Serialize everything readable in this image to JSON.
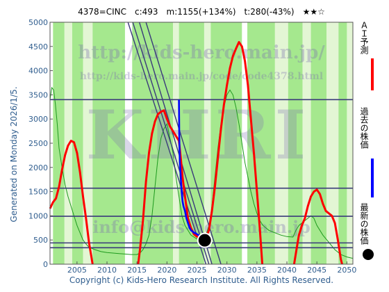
{
  "header": {
    "title": "4378=CINC　c:493　m:1155(+134%)　t:280(-43%)　★★☆"
  },
  "side_label": "Generated on Monday 2026/1/5.",
  "footer": "Copyright (c) Kids-Hero Research Institute. All Rights Reserved.",
  "watermarks": {
    "url_main": "http://kids-hero.main.jp/",
    "url_code": "http://kids-hero.main.jp/code/code4378.html",
    "brand": "KHRI",
    "email": "info@kids-hero.main.jp"
  },
  "legend": [
    {
      "label": "ＡＩ予測",
      "color": "#ff0000",
      "marker": "bar"
    },
    {
      "label": "過去の株価",
      "color": "#0000ff",
      "marker": "bar"
    },
    {
      "label": "最新の株価",
      "color": "#000000",
      "marker": "dot"
    }
  ],
  "colors": {
    "band_green": "#a5e88e",
    "band_light": "#e3f6d4",
    "band_white": "#ffffff",
    "ai": "#ff0000",
    "past": "#0000ff",
    "current": "#000000",
    "level": "#3a3a7a",
    "trend": "#3a3a7a",
    "thin_green": "#1e9a1e",
    "axis_text": "#2f5d8e"
  },
  "chart_data": {
    "type": "line",
    "xlim": [
      2000.5,
      2051.0
    ],
    "ylim": [
      0,
      5000
    ],
    "x_ticks": [
      2005,
      2010,
      2015,
      2020,
      2025,
      2030,
      2035,
      2040,
      2045,
      2050
    ],
    "y_ticks": [
      0,
      500,
      1000,
      1500,
      2000,
      2500,
      3000,
      3500,
      4000,
      4500,
      5000
    ],
    "green_bands": [
      [
        2001.0,
        2002.9
      ],
      [
        2004.2,
        2006.0
      ],
      [
        2007.6,
        2013.0
      ],
      [
        2014.2,
        2021.0
      ],
      [
        2022.0,
        2026.2
      ],
      [
        2027.3,
        2032.5
      ],
      [
        2033.4,
        2038.0
      ],
      [
        2040.2,
        2042.6
      ],
      [
        2044.0,
        2046.6
      ],
      [
        2048.6,
        2050.0
      ]
    ],
    "light_bands": [
      [
        2002.9,
        2004.2
      ],
      [
        2006.0,
        2007.6
      ],
      [
        2021.0,
        2022.0
      ],
      [
        2026.2,
        2027.3
      ],
      [
        2038.0,
        2040.2
      ],
      [
        2042.6,
        2044.0
      ],
      [
        2046.6,
        2048.6
      ],
      [
        2050.0,
        2051.0
      ]
    ],
    "levels": [
      340,
      440,
      990,
      1570,
      3400
    ],
    "trend_lines": [
      [
        [
          2013.5,
          5000
        ],
        [
          2026.5,
          0
        ]
      ],
      [
        [
          2014.3,
          5000
        ],
        [
          2027.0,
          0
        ]
      ],
      [
        [
          2015.4,
          5000
        ],
        [
          2027.5,
          0
        ]
      ],
      [
        [
          2016.5,
          5000
        ],
        [
          2029.0,
          0
        ]
      ]
    ],
    "series": [
      {
        "name": "ＡＩ予測",
        "color": "#ff0000",
        "points": [
          [
            2000.5,
            1150
          ],
          [
            2001.0,
            1280
          ],
          [
            2001.5,
            1360
          ],
          [
            2002.0,
            1600
          ],
          [
            2002.5,
            1950
          ],
          [
            2003.0,
            2250
          ],
          [
            2003.5,
            2450
          ],
          [
            2004.0,
            2550
          ],
          [
            2004.5,
            2520
          ],
          [
            2005.0,
            2300
          ],
          [
            2005.5,
            1900
          ],
          [
            2006.0,
            1400
          ],
          [
            2006.5,
            950
          ],
          [
            2007.0,
            450
          ],
          [
            2007.4,
            150
          ],
          [
            2007.6,
            0
          ],
          [
            null,
            null
          ],
          [
            2015.2,
            0
          ],
          [
            2015.5,
            300
          ],
          [
            2016.0,
            900
          ],
          [
            2016.5,
            1700
          ],
          [
            2017.0,
            2300
          ],
          [
            2017.5,
            2700
          ],
          [
            2018.0,
            2950
          ],
          [
            2018.5,
            3100
          ],
          [
            2019.0,
            3150
          ],
          [
            2019.5,
            3180
          ],
          [
            2020.0,
            3000
          ],
          [
            2020.5,
            2850
          ],
          [
            2021.0,
            2750
          ],
          [
            2021.5,
            2650
          ],
          [
            2022.0,
            2550
          ],
          [
            2022.3,
            2200
          ],
          [
            2022.6,
            1800
          ],
          [
            2023.0,
            1400
          ],
          [
            2023.5,
            950
          ],
          [
            2024.0,
            750
          ],
          [
            2024.5,
            620
          ],
          [
            2025.0,
            570
          ],
          [
            2025.5,
            530
          ],
          [
            2026.0,
            500
          ],
          [
            2026.3,
            493
          ],
          [
            2027.0,
            700
          ],
          [
            2027.5,
            1100
          ],
          [
            2028.0,
            1600
          ],
          [
            2028.5,
            2200
          ],
          [
            2029.0,
            2800
          ],
          [
            2029.5,
            3300
          ],
          [
            2030.0,
            3700
          ],
          [
            2030.5,
            4050
          ],
          [
            2031.0,
            4300
          ],
          [
            2031.5,
            4450
          ],
          [
            2032.0,
            4590
          ],
          [
            2032.5,
            4500
          ],
          [
            2033.0,
            4200
          ],
          [
            2033.5,
            3700
          ],
          [
            2034.0,
            3000
          ],
          [
            2034.5,
            2300
          ],
          [
            2035.0,
            1500
          ],
          [
            2035.5,
            700
          ],
          [
            2035.9,
            0
          ],
          [
            null,
            null
          ],
          [
            2041.2,
            0
          ],
          [
            2041.6,
            300
          ],
          [
            2042.0,
            600
          ],
          [
            2042.5,
            800
          ],
          [
            2043.0,
            950
          ],
          [
            2043.5,
            1200
          ],
          [
            2044.0,
            1400
          ],
          [
            2044.5,
            1500
          ],
          [
            2045.0,
            1540
          ],
          [
            2045.5,
            1450
          ],
          [
            2046.0,
            1250
          ],
          [
            2046.5,
            1100
          ],
          [
            2047.0,
            1050
          ],
          [
            2047.5,
            1000
          ],
          [
            2048.0,
            850
          ],
          [
            2048.5,
            500
          ],
          [
            2049.0,
            100
          ],
          [
            2049.2,
            0
          ]
        ]
      },
      {
        "name": "過去の株価",
        "color": "#0000ff",
        "points": [
          [
            2022.0,
            3400
          ],
          [
            2022.05,
            2600
          ],
          [
            2022.15,
            2100
          ],
          [
            2022.25,
            1900
          ],
          [
            2022.35,
            1700
          ],
          [
            2022.45,
            1500
          ],
          [
            2022.6,
            1300
          ],
          [
            2022.75,
            1200
          ],
          [
            2023.0,
            1100
          ],
          [
            2023.25,
            950
          ],
          [
            2023.5,
            850
          ],
          [
            2023.75,
            760
          ],
          [
            2024.0,
            700
          ],
          [
            2024.25,
            680
          ],
          [
            2024.5,
            650
          ],
          [
            2024.75,
            640
          ],
          [
            2025.0,
            620
          ],
          [
            2025.25,
            600
          ],
          [
            2025.5,
            560
          ],
          [
            2025.75,
            520
          ],
          [
            2026.0,
            493
          ]
        ]
      }
    ],
    "green_line": [
      [
        2000.5,
        3400
      ],
      [
        2000.8,
        3650
      ],
      [
        2001.1,
        3600
      ],
      [
        2001.4,
        3300
      ],
      [
        2001.7,
        2900
      ],
      [
        2002.0,
        2400
      ],
      [
        2002.5,
        2000
      ],
      [
        2003.0,
        1650
      ],
      [
        2003.5,
        1400
      ],
      [
        2004.0,
        1200
      ],
      [
        2004.5,
        1000
      ],
      [
        2005.0,
        800
      ],
      [
        2005.5,
        650
      ],
      [
        2006.0,
        500
      ],
      [
        2006.5,
        420
      ],
      [
        2007.0,
        350
      ],
      [
        2008.0,
        300
      ],
      [
        2009.0,
        260
      ],
      [
        2010.0,
        240
      ],
      [
        2011.0,
        230
      ],
      [
        2012.0,
        220
      ],
      [
        2013.0,
        210
      ],
      [
        2014.0,
        200
      ],
      [
        2015.0,
        200
      ],
      [
        2015.5,
        230
      ],
      [
        2016.0,
        300
      ],
      [
        2016.5,
        420
      ],
      [
        2017.0,
        600
      ],
      [
        2017.5,
        1000
      ],
      [
        2018.0,
        1600
      ],
      [
        2018.5,
        2200
      ],
      [
        2019.0,
        2600
      ],
      [
        2019.5,
        2800
      ],
      [
        2020.0,
        2900
      ],
      [
        2020.5,
        2600
      ],
      [
        2021.0,
        2300
      ],
      [
        2021.5,
        1800
      ],
      [
        2022.0,
        1400
      ],
      [
        2022.5,
        1000
      ],
      [
        2023.0,
        800
      ],
      [
        2023.5,
        700
      ],
      [
        2024.0,
        600
      ],
      [
        2025.0,
        520
      ],
      [
        2026.0,
        493
      ],
      [
        2026.5,
        600
      ],
      [
        2027.0,
        800
      ],
      [
        2027.5,
        1200
      ],
      [
        2028.0,
        1800
      ],
      [
        2028.5,
        2400
      ],
      [
        2029.0,
        2900
      ],
      [
        2029.5,
        3250
      ],
      [
        2030.0,
        3500
      ],
      [
        2030.5,
        3600
      ],
      [
        2031.0,
        3500
      ],
      [
        2031.5,
        3250
      ],
      [
        2032.0,
        2900
      ],
      [
        2032.5,
        2500
      ],
      [
        2033.0,
        2100
      ],
      [
        2033.5,
        1800
      ],
      [
        2034.0,
        1500
      ],
      [
        2034.5,
        1250
      ],
      [
        2035.0,
        1050
      ],
      [
        2035.5,
        900
      ],
      [
        2036.0,
        800
      ],
      [
        2037.0,
        700
      ],
      [
        2038.0,
        650
      ],
      [
        2039.0,
        600
      ],
      [
        2040.0,
        570
      ],
      [
        2041.0,
        560
      ],
      [
        2041.5,
        700
      ],
      [
        2042.0,
        800
      ],
      [
        2042.5,
        850
      ],
      [
        2043.0,
        900
      ],
      [
        2043.5,
        950
      ],
      [
        2044.0,
        1000
      ],
      [
        2044.5,
        950
      ],
      [
        2045.0,
        800
      ],
      [
        2046.0,
        600
      ],
      [
        2047.0,
        450
      ],
      [
        2048.0,
        300
      ],
      [
        2049.0,
        200
      ],
      [
        2050.0,
        150
      ],
      [
        2051.0,
        120
      ]
    ],
    "current_point": {
      "x": 2026.3,
      "y": 493
    }
  }
}
